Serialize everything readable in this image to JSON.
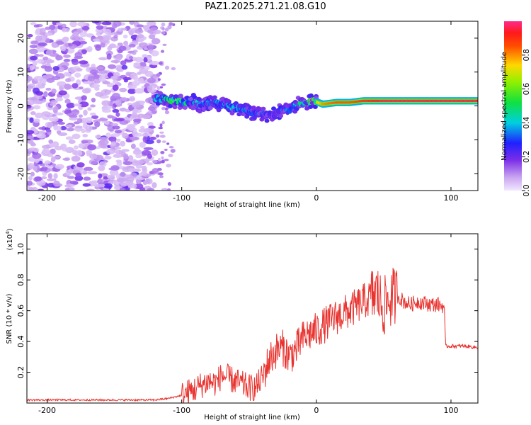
{
  "title": "PAZ1.2025.271.21.08.G10",
  "chart_data": [
    {
      "type": "heatmap",
      "xlabel": "Height of straight line (km)",
      "ylabel": "Frequency (Hz)",
      "xlim": [
        -215,
        120
      ],
      "ylim": [
        -25,
        25
      ],
      "xticks": [
        -200,
        -100,
        0,
        100
      ],
      "yticks": [
        -20,
        -10,
        0,
        10,
        20
      ],
      "xtick_labels": [
        "-200",
        "-100",
        "0",
        "100"
      ],
      "ytick_labels": [
        "-20",
        "-10",
        "0",
        "10",
        "20"
      ],
      "colorbar": {
        "label": "Normalized spectral amplitude",
        "range": [
          0,
          1
        ],
        "ticks": [
          0.0,
          0.2,
          0.4,
          0.6,
          0.8
        ],
        "tick_labels": [
          "0.0",
          "0.2",
          "0.4",
          "0.6",
          "0.8"
        ]
      },
      "signal_track": [
        {
          "x": -120,
          "y": 2.5,
          "amp": 0.35
        },
        {
          "x": -112,
          "y": 2.0,
          "amp": 0.45
        },
        {
          "x": -105,
          "y": 1.5,
          "amp": 0.5
        },
        {
          "x": -98,
          "y": 1.0,
          "amp": 0.45
        },
        {
          "x": -92,
          "y": 1.5,
          "amp": 0.4
        },
        {
          "x": -85,
          "y": 0.0,
          "amp": 0.35
        },
        {
          "x": -78,
          "y": 1.0,
          "amp": 0.3
        },
        {
          "x": -70,
          "y": 0.5,
          "amp": 0.35
        },
        {
          "x": -62,
          "y": -0.5,
          "amp": 0.35
        },
        {
          "x": -55,
          "y": -1.0,
          "amp": 0.35
        },
        {
          "x": -48,
          "y": -2.0,
          "amp": 0.3
        },
        {
          "x": -40,
          "y": -2.5,
          "amp": 0.3
        },
        {
          "x": -33,
          "y": -3.0,
          "amp": 0.25
        },
        {
          "x": -26,
          "y": -1.0,
          "amp": 0.3
        },
        {
          "x": -20,
          "y": -1.5,
          "amp": 0.35
        },
        {
          "x": -14,
          "y": 0.5,
          "amp": 0.4
        },
        {
          "x": -8,
          "y": 1.0,
          "amp": 0.55
        },
        {
          "x": -2,
          "y": 1.5,
          "amp": 0.65
        },
        {
          "x": 5,
          "y": 0.5,
          "amp": 0.8
        },
        {
          "x": 15,
          "y": 1.0,
          "amp": 0.85
        },
        {
          "x": 25,
          "y": 1.0,
          "amp": 0.85
        },
        {
          "x": 35,
          "y": 1.5,
          "amp": 0.9
        },
        {
          "x": 50,
          "y": 1.5,
          "amp": 0.95
        },
        {
          "x": 65,
          "y": 1.5,
          "amp": 0.95
        },
        {
          "x": 80,
          "y": 1.5,
          "amp": 0.95
        },
        {
          "x": 95,
          "y": 1.5,
          "amp": 0.95
        },
        {
          "x": 110,
          "y": 1.5,
          "amp": 0.95
        },
        {
          "x": 120,
          "y": 1.5,
          "amp": 0.95
        }
      ]
    },
    {
      "type": "line",
      "xlabel": "Height of straight line (km)",
      "ylabel": "SNR (10 * v/v)",
      "y_multiplier_label": "(x10",
      "y_multiplier_exp": "4",
      "y_multiplier_close": ")",
      "xlim": [
        -215,
        120
      ],
      "ylim": [
        0,
        1.1
      ],
      "xticks": [
        -200,
        -100,
        0,
        100
      ],
      "yticks": [
        0.2,
        0.4,
        0.6,
        0.8,
        1.0
      ],
      "xtick_labels": [
        "-200",
        "-100",
        "0",
        "100"
      ],
      "ytick_labels": [
        "0.2",
        "0.4",
        "0.6",
        "0.8",
        "1.0"
      ],
      "series": [
        {
          "name": "SNR",
          "color": "#e8332f",
          "x": [
            -215,
            -200,
            -180,
            -160,
            -140,
            -120,
            -110,
            -100,
            -95,
            -90,
            -85,
            -80,
            -75,
            -70,
            -65,
            -60,
            -55,
            -50,
            -45,
            -40,
            -35,
            -30,
            -25,
            -20,
            -15,
            -10,
            -5,
            0,
            5,
            10,
            15,
            20,
            25,
            30,
            35,
            40,
            45,
            48,
            50,
            55,
            60,
            65,
            70,
            75,
            80,
            85,
            90,
            95,
            96,
            100,
            110,
            120
          ],
          "values": [
            0.02,
            0.02,
            0.02,
            0.02,
            0.02,
            0.02,
            0.03,
            0.05,
            0.07,
            0.09,
            0.12,
            0.14,
            0.13,
            0.18,
            0.16,
            0.14,
            0.12,
            0.1,
            0.1,
            0.17,
            0.28,
            0.34,
            0.36,
            0.3,
            0.35,
            0.42,
            0.45,
            0.47,
            0.5,
            0.53,
            0.56,
            0.58,
            0.6,
            0.63,
            0.66,
            0.68,
            0.72,
            0.65,
            0.62,
            0.68,
            0.7,
            0.66,
            0.64,
            0.66,
            0.65,
            0.64,
            0.64,
            0.63,
            0.37,
            0.37,
            0.37,
            0.36
          ]
        }
      ]
    }
  ]
}
